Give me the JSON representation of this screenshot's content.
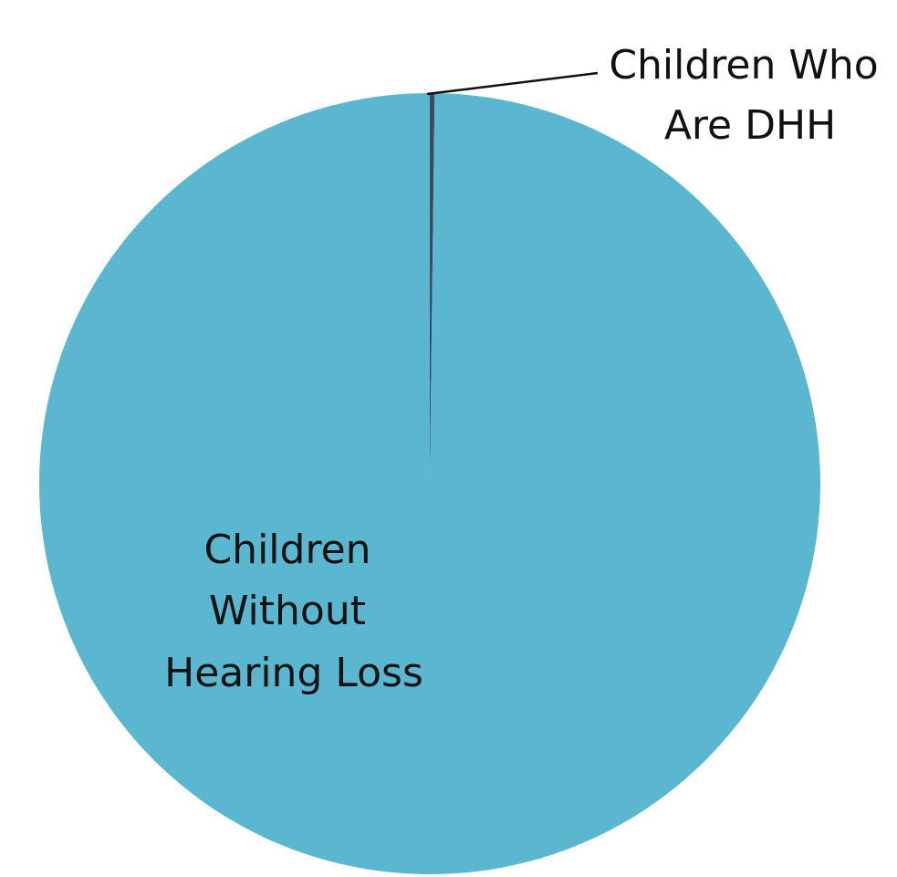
{
  "chart_data": {
    "type": "pie",
    "slices": [
      {
        "label": "Children Who Are DHH",
        "label_lines": [
          "Children Who",
          "Are DHH"
        ],
        "value": 0.2,
        "color": "#3e4a6b"
      },
      {
        "label": "Children Without Hearing Loss",
        "label_lines": [
          "Children",
          "Without",
          "Hearing Loss"
        ],
        "value": 99.8,
        "color": "#5ab7cf"
      }
    ],
    "title": "",
    "legend": "none",
    "start_angle": "12 o'clock",
    "direction": "clockwise"
  }
}
